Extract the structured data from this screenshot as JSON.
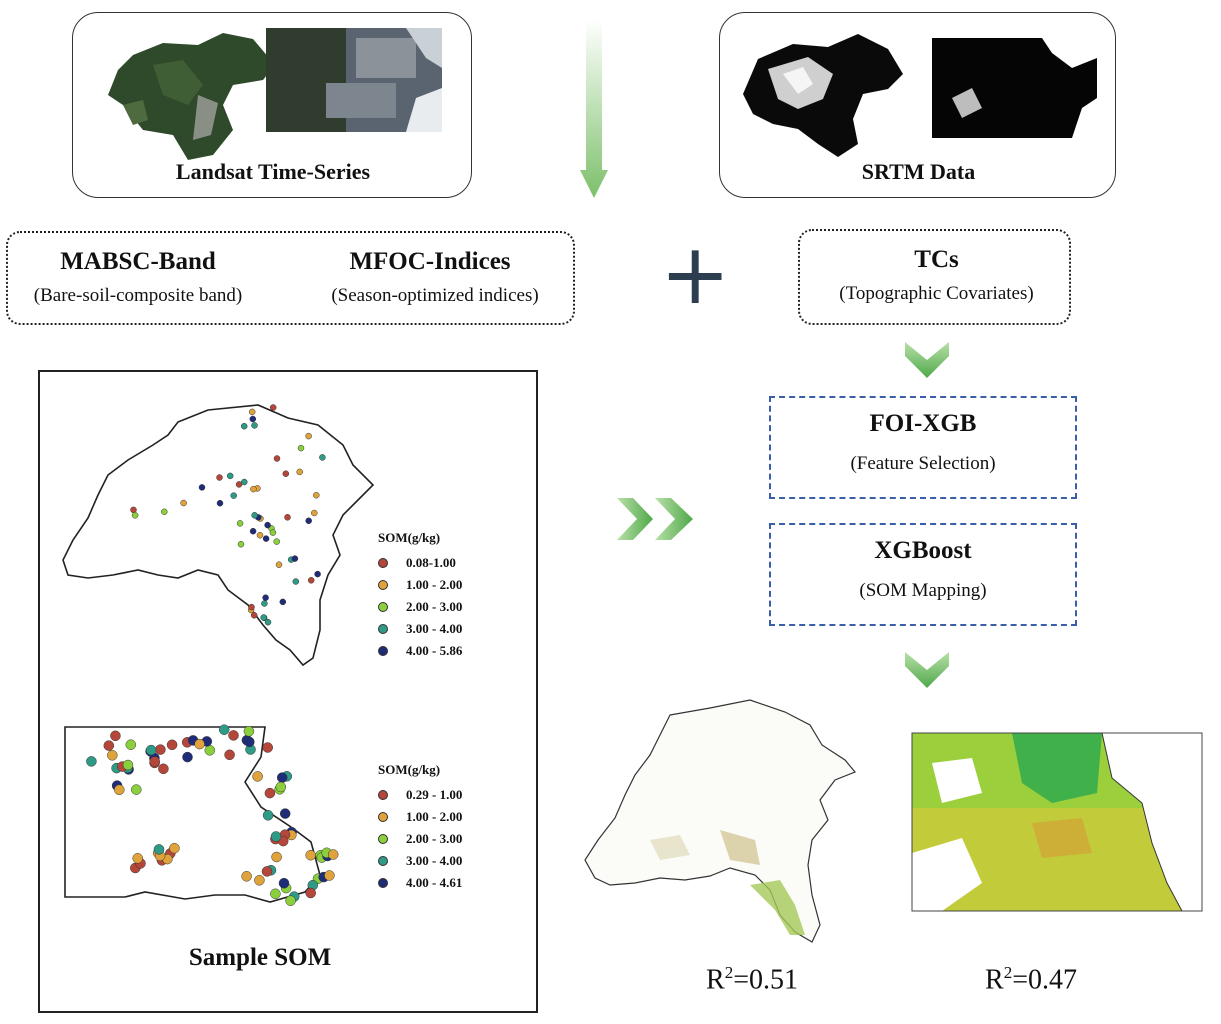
{
  "top_left": {
    "label": "Landsat Time-Series"
  },
  "top_right": {
    "label": "SRTM Data"
  },
  "left_group": {
    "item1": {
      "title": "MABSC-Band",
      "subtitle": "(Bare-soil-composite band)"
    },
    "item2": {
      "title": "MFOC-Indices",
      "subtitle": "(Season-optimized indices)"
    }
  },
  "plus_symbol": "+",
  "tcs": {
    "title": "TCs",
    "subtitle": "(Topographic Covariates)"
  },
  "foi": {
    "title": "FOI-XGB",
    "subtitle": "(Feature Selection)"
  },
  "xgb": {
    "title": "XGBoost",
    "subtitle": "(SOM Mapping)"
  },
  "sample": {
    "label": "Sample SOM",
    "legend1": {
      "title": "SOM(g/kg)",
      "items": [
        {
          "label": "0.08-1.00",
          "color": "#b5463a"
        },
        {
          "label": "1.00 - 2.00",
          "color": "#e0a23a"
        },
        {
          "label": "2.00 - 3.00",
          "color": "#8ccf3c"
        },
        {
          "label": "3.00 - 4.00",
          "color": "#2f9a85"
        },
        {
          "label": "4.00 - 5.86",
          "color": "#1f2d78"
        }
      ]
    },
    "legend2": {
      "title": "SOM(g/kg)",
      "items": [
        {
          "label": "0.29 - 1.00",
          "color": "#b5463a"
        },
        {
          "label": "1.00 - 2.00",
          "color": "#e0a23a"
        },
        {
          "label": "2.00 - 3.00",
          "color": "#8ccf3c"
        },
        {
          "label": "3.00 - 4.00",
          "color": "#2f9a85"
        },
        {
          "label": "4.00 - 4.61",
          "color": "#1f2d78"
        }
      ]
    }
  },
  "results": {
    "r2_a": {
      "prefix": "R",
      "sup": "2",
      "value": "=0.51"
    },
    "r2_b": {
      "prefix": "R",
      "sup": "2",
      "value": "=0.47"
    }
  },
  "colors": {
    "arrow_green": "#7cc06a",
    "dash_blue": "#3a5fa8",
    "plus_navy": "#2c3e50"
  }
}
